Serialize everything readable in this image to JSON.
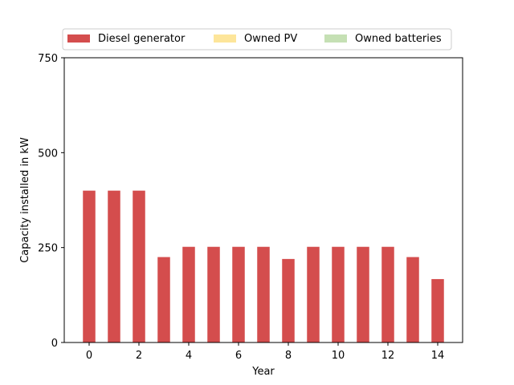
{
  "chart_data": {
    "type": "bar",
    "xlabel": "Year",
    "ylabel": "Capacity installed in kW",
    "x": [
      0,
      1,
      2,
      3,
      4,
      5,
      6,
      7,
      8,
      9,
      10,
      11,
      12,
      13,
      14
    ],
    "xlim": [
      -1,
      15
    ],
    "ylim": [
      0,
      750
    ],
    "xticks": [
      0,
      2,
      4,
      6,
      8,
      10,
      12,
      14
    ],
    "yticks": [
      0,
      250,
      500,
      750
    ],
    "grid": false,
    "legend_position": "top-center, above plot",
    "series": [
      {
        "name": "Diesel generator",
        "color": "#d44d4d",
        "values": [
          400,
          400,
          400,
          225,
          252,
          252,
          252,
          252,
          220,
          252,
          252,
          252,
          252,
          225,
          167
        ]
      },
      {
        "name": "Owned PV",
        "color": "#fde59a",
        "values": [
          0,
          0,
          0,
          0,
          0,
          0,
          0,
          0,
          0,
          0,
          0,
          0,
          0,
          0,
          0
        ]
      },
      {
        "name": "Owned batteries",
        "color": "#c5e0b4",
        "values": [
          0,
          0,
          0,
          0,
          0,
          0,
          0,
          0,
          0,
          0,
          0,
          0,
          0,
          0,
          0
        ]
      }
    ]
  }
}
